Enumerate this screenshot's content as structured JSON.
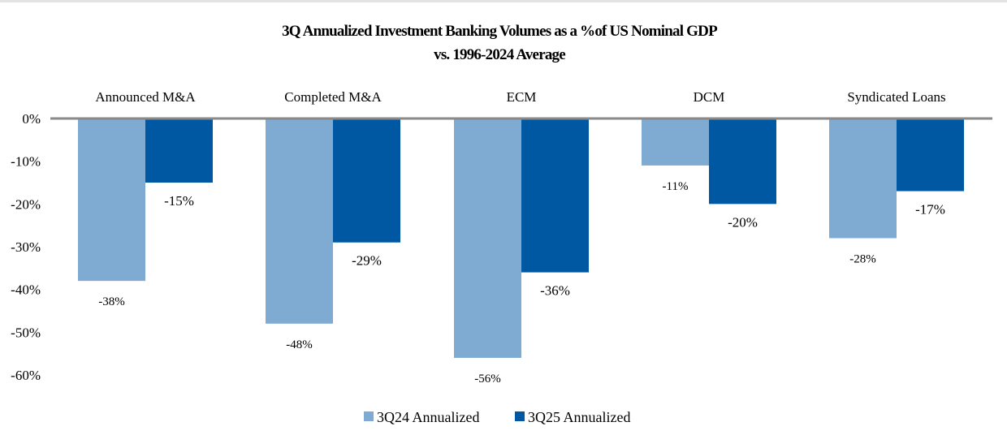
{
  "chart_data": {
    "type": "bar",
    "title": "3Q Annualized Investment Banking Volumes as a %of US Nominal GDP",
    "subtitle": "vs. 1996-2024 Average",
    "categories": [
      "Announced M&A",
      "Completed M&A",
      "ECM",
      "DCM",
      "Syndicated Loans"
    ],
    "series": [
      {
        "name": "3Q24 Annualized",
        "color": "#7FAAD2",
        "values": [
          -38,
          -48,
          -56,
          -11,
          -28
        ]
      },
      {
        "name": "3Q25 Annualized",
        "color": "#0058A3",
        "values": [
          -15,
          -29,
          -36,
          -20,
          -17
        ]
      }
    ],
    "yticks": [
      0,
      -10,
      -20,
      -30,
      -40,
      -50,
      -60
    ],
    "ytick_labels": [
      "0%",
      "-10%",
      "-20%",
      "-30%",
      "-40%",
      "-50%",
      "-60%"
    ],
    "ylim": [
      -60,
      0
    ],
    "xlabel": "",
    "ylabel": "",
    "legend_position": "bottom",
    "grid": false
  }
}
